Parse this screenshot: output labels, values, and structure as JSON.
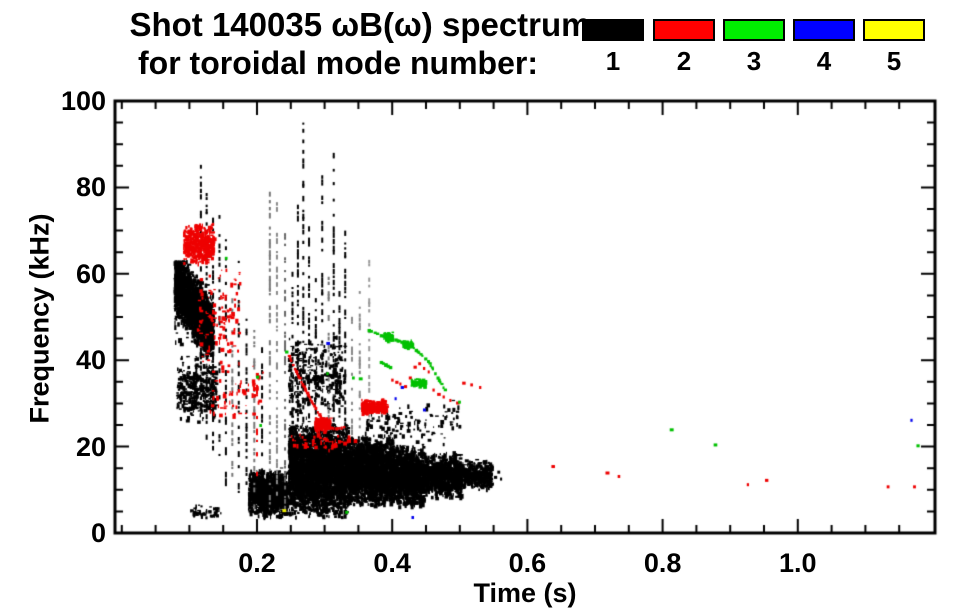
{
  "title": {
    "line1": "Shot 140035 ωB(ω) spectrum",
    "line2": "for toroidal mode number:"
  },
  "legend": {
    "items": [
      {
        "label": "1",
        "color": "#000000"
      },
      {
        "label": "2",
        "color": "#ff0000"
      },
      {
        "label": "3",
        "color": "#00ee00"
      },
      {
        "label": "4",
        "color": "#0000ff"
      },
      {
        "label": "5",
        "color": "#ffff00"
      }
    ]
  },
  "chart_data": {
    "type": "scatter",
    "title": "Shot 140035 ωB(ω) spectrum",
    "subtitle": "for toroidal mode number:",
    "xlabel": "Time (s)",
    "ylabel": "Frequency (kHz)",
    "xlim": [
      -0.01,
      1.203
    ],
    "ylim": [
      0,
      100
    ],
    "x_major_ticks": [
      0.2,
      0.4,
      0.6,
      0.8,
      1.0
    ],
    "x_tick_labels": [
      "0.2",
      "0.4",
      "0.6",
      "0.8",
      "1.0"
    ],
    "x_minor_step": 0.05,
    "y_major_ticks": [
      0,
      20,
      40,
      60,
      80,
      100
    ],
    "y_tick_labels": [
      "0",
      "20",
      "40",
      "60",
      "80",
      "100"
    ],
    "y_minor_step": 5,
    "grid": false,
    "legend_position": "top-right",
    "series": [
      {
        "name": "1",
        "color": "#000000",
        "clusters": [
          {
            "kind": "blob",
            "t": [
              0.078,
              0.135
            ],
            "f": [
              38,
              63
            ],
            "n": 2500,
            "drift": [
              58,
              47,
              6.5
            ]
          },
          {
            "kind": "blob",
            "t": [
              0.082,
              0.14
            ],
            "f": [
              25,
              42
            ],
            "n": 330
          },
          {
            "kind": "blob",
            "t": [
              0.188,
              0.245
            ],
            "f": [
              3.5,
              15
            ],
            "n": 1100
          },
          {
            "kind": "blob",
            "t": [
              0.247,
              0.335
            ],
            "f": [
              3.5,
              26
            ],
            "n": 3600
          },
          {
            "kind": "blob",
            "t": [
              0.247,
              0.33
            ],
            "f": [
              26,
              46
            ],
            "n": 300
          },
          {
            "kind": "blob",
            "t": [
              0.335,
              0.402
            ],
            "f": [
              6,
              23
            ],
            "n": 2100
          },
          {
            "kind": "blob",
            "t": [
              0.402,
              0.447
            ],
            "f": [
              6,
              20.5
            ],
            "n": 1300
          },
          {
            "kind": "blob",
            "t": [
              0.447,
              0.502
            ],
            "f": [
              8,
              19
            ],
            "n": 850
          },
          {
            "kind": "blob",
            "t": [
              0.502,
              0.548
            ],
            "f": [
              10,
              17
            ],
            "n": 420
          },
          {
            "kind": "blob",
            "t": [
              0.36,
              0.5
            ],
            "f": [
              20,
              31
            ],
            "n": 130
          },
          {
            "kind": "blob",
            "t": [
              0.1,
              0.148
            ],
            "f": [
              3.5,
              6.5
            ],
            "n": 45
          },
          {
            "kind": "dots",
            "pts": [
              [
                0.552,
                13
              ],
              [
                0.557,
                14.2
              ],
              [
                0.561,
                12.6
              ]
            ]
          },
          {
            "kind": "vstreak",
            "t": 0.117,
            "f": [
              28,
              87
            ]
          },
          {
            "kind": "vstreak",
            "t": 0.1255,
            "f": [
              22,
              80
            ]
          },
          {
            "kind": "vstreak",
            "t": 0.135,
            "f": [
              18,
              73
            ]
          },
          {
            "kind": "vstreak",
            "t": 0.1445,
            "f": [
              14,
              76
            ]
          },
          {
            "kind": "vstreak",
            "t": 0.154,
            "f": [
              11,
              68
            ]
          },
          {
            "kind": "vstreak",
            "t": 0.1635,
            "f": [
              9,
              57
            ],
            "c": "#777777"
          },
          {
            "kind": "vstreak",
            "t": 0.173,
            "f": [
              8,
              63
            ]
          },
          {
            "kind": "vstreak",
            "t": 0.1845,
            "f": [
              6,
              51
            ]
          },
          {
            "kind": "vstreak",
            "t": 0.196,
            "f": [
              5,
              47
            ],
            "c": "#777777"
          },
          {
            "kind": "vstreak",
            "t": 0.2075,
            "f": [
              4,
              43
            ]
          },
          {
            "kind": "vstreak",
            "t": 0.219,
            "f": [
              7,
              79
            ],
            "c": "#777777"
          },
          {
            "kind": "vstreak",
            "t": 0.2295,
            "f": [
              9,
              80
            ],
            "c": "#888888"
          },
          {
            "kind": "vstreak",
            "t": 0.2415,
            "f": [
              6,
              73
            ],
            "c": "#666666"
          },
          {
            "kind": "vstreak",
            "t": 0.2525,
            "f": [
              26,
              62
            ]
          },
          {
            "kind": "vstreak",
            "t": 0.2605,
            "f": [
              26,
              76
            ]
          },
          {
            "kind": "vstreak",
            "t": 0.2685,
            "f": [
              26,
              95
            ]
          },
          {
            "kind": "vstreak",
            "t": 0.277,
            "f": [
              26,
              71
            ]
          },
          {
            "kind": "vstreak",
            "t": 0.287,
            "f": [
              26,
              59
            ]
          },
          {
            "kind": "vstreak",
            "t": 0.2965,
            "f": [
              26,
              84
            ]
          },
          {
            "kind": "vstreak",
            "t": 0.306,
            "f": [
              24,
              62
            ],
            "c": "#777777"
          },
          {
            "kind": "vstreak",
            "t": 0.3135,
            "f": [
              24,
              88
            ]
          },
          {
            "kind": "vstreak",
            "t": 0.322,
            "f": [
              22,
              56
            ]
          },
          {
            "kind": "vstreak",
            "t": 0.3305,
            "f": [
              22,
              70
            ]
          },
          {
            "kind": "vstreak",
            "t": 0.3405,
            "f": [
              22,
              51
            ],
            "c": "#888888"
          },
          {
            "kind": "vstreak",
            "t": 0.352,
            "f": [
              24,
              56
            ],
            "c": "#888888"
          },
          {
            "kind": "vstreak",
            "t": 0.366,
            "f": [
              26,
              66
            ],
            "c": "#999999"
          }
        ]
      },
      {
        "name": "2",
        "color": "#ee0000",
        "clusters": [
          {
            "kind": "blob",
            "t": [
              0.092,
              0.136
            ],
            "f": [
              62,
              72
            ],
            "n": 420
          },
          {
            "kind": "blob",
            "t": [
              0.112,
              0.175
            ],
            "f": [
              38,
              62
            ],
            "n": 110
          },
          {
            "kind": "blob",
            "t": [
              0.13,
              0.21
            ],
            "f": [
              24,
              40
            ],
            "n": 60
          },
          {
            "kind": "vstreak",
            "t": 0.2,
            "f": [
              12,
              36
            ]
          },
          {
            "kind": "trace",
            "pts": [
              [
                0.247,
                41
              ],
              [
                0.256,
                38
              ],
              [
                0.264,
                35.5
              ],
              [
                0.272,
                33
              ],
              [
                0.281,
                30.5
              ],
              [
                0.29,
                28
              ],
              [
                0.298,
                26
              ],
              [
                0.306,
                24.5
              ],
              [
                0.318,
                24.2
              ],
              [
                0.331,
                24.6
              ]
            ]
          },
          {
            "kind": "blob",
            "t": [
              0.286,
              0.308
            ],
            "f": [
              23.5,
              27
            ],
            "n": 150
          },
          {
            "kind": "blob",
            "t": [
              0.355,
              0.392
            ],
            "f": [
              27.5,
              31
            ],
            "n": 210
          },
          {
            "kind": "blob",
            "t": [
              0.25,
              0.345
            ],
            "f": [
              19,
              23.5
            ],
            "n": 45
          },
          {
            "kind": "dots",
            "pts": [
              [
                0.4,
                35.5
              ],
              [
                0.406,
                35
              ],
              [
                0.412,
                34.6
              ],
              [
                0.419,
                34
              ],
              [
                0.426,
                36
              ],
              [
                0.433,
                38.5
              ],
              [
                0.44,
                39.3
              ],
              [
                0.447,
                38.2
              ],
              [
                0.454,
                37.4
              ],
              [
                0.461,
                33.2
              ],
              [
                0.468,
                32.2
              ],
              [
                0.476,
                31.6
              ],
              [
                0.486,
                30.8
              ],
              [
                0.496,
                30.2
              ],
              [
                0.505,
                34.8
              ],
              [
                0.517,
                34.4
              ],
              [
                0.53,
                33.8
              ]
            ]
          },
          {
            "kind": "dots",
            "pts": [
              [
                0.637,
                15.5
              ],
              [
                0.717,
                14
              ],
              [
                0.735,
                13.2
              ],
              [
                0.926,
                11.3
              ],
              [
                0.953,
                12.3
              ],
              [
                1.133,
                10.8
              ],
              [
                1.172,
                10.8
              ]
            ]
          }
        ]
      },
      {
        "name": "3",
        "color": "#00c000",
        "clusters": [
          {
            "kind": "dots",
            "pts": [
              [
                0.154,
                63.7
              ],
              [
                0.2,
                36.2
              ],
              [
                0.205,
                25
              ],
              [
                0.243,
                42
              ],
              [
                0.304,
                37
              ],
              [
                0.332,
                4.9
              ],
              [
                0.342,
                36
              ],
              [
                0.352,
                35.8
              ]
            ]
          },
          {
            "kind": "trace",
            "pts": [
              [
                0.365,
                47
              ],
              [
                0.374,
                46.4
              ],
              [
                0.383,
                45.8
              ],
              [
                0.392,
                45.3
              ],
              [
                0.401,
                45
              ],
              [
                0.41,
                44.5
              ],
              [
                0.419,
                44
              ],
              [
                0.427,
                43.4
              ]
            ]
          },
          {
            "kind": "blob",
            "t": [
              0.388,
              0.401
            ],
            "f": [
              44.6,
              46.4
            ],
            "n": 60
          },
          {
            "kind": "blob",
            "t": [
              0.414,
              0.429
            ],
            "f": [
              43,
              44.6
            ],
            "n": 55
          },
          {
            "kind": "trace",
            "pts": [
              [
                0.432,
                42.8
              ],
              [
                0.439,
                41.8
              ],
              [
                0.446,
                40.8
              ],
              [
                0.453,
                39.8
              ],
              [
                0.46,
                38
              ],
              [
                0.467,
                36
              ],
              [
                0.474,
                34.2
              ],
              [
                0.48,
                32.6
              ]
            ]
          },
          {
            "kind": "trace",
            "pts": [
              [
                0.383,
                39.6
              ],
              [
                0.39,
                39
              ],
              [
                0.397,
                38.4
              ]
            ]
          },
          {
            "kind": "blob",
            "t": [
              0.428,
              0.449
            ],
            "f": [
              34,
              35.8
            ],
            "n": 65
          },
          {
            "kind": "dots",
            "pts": [
              [
                0.499,
                30.4
              ],
              [
                0.812,
                24
              ],
              [
                0.877,
                20.5
              ],
              [
                1.177,
                20.3
              ]
            ]
          }
        ]
      },
      {
        "name": "4",
        "color": "#0000ee",
        "clusters": [
          {
            "kind": "dots",
            "pts": [
              [
                0.304,
                44
              ],
              [
                0.405,
                31.2
              ],
              [
                0.414,
                33.8
              ],
              [
                0.447,
                28.6
              ],
              [
                0.43,
                3.7
              ],
              [
                1.168,
                26.2
              ]
            ]
          }
        ]
      },
      {
        "name": "5",
        "color": "#eeee00",
        "clusters": [
          {
            "kind": "dots",
            "pts": [
              [
                0.239,
                5.3
              ]
            ]
          }
        ]
      }
    ]
  }
}
